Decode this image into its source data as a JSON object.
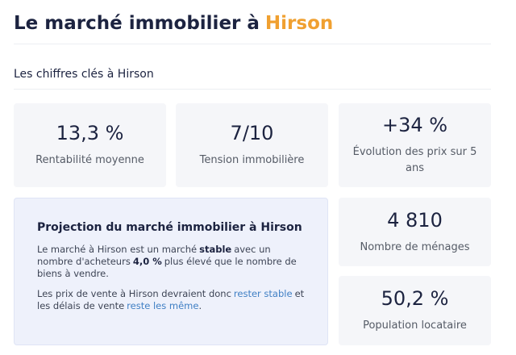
{
  "header": {
    "title": "Le marché immobilier à",
    "city": "Hirson"
  },
  "section": {
    "title": "Les chiffres clés à Hirson"
  },
  "stats": [
    {
      "value": "13,3 %",
      "label": "Rentabilité moyenne"
    },
    {
      "value": "7/10",
      "label": "Tension immobilière"
    },
    {
      "value": "+34 %",
      "label": "Évolution des prix sur 5 ans"
    },
    {
      "value": "4 810",
      "label": "Nombre de ménages"
    },
    {
      "value": "50,2 %",
      "label": "Population locataire"
    }
  ],
  "projection": {
    "title": "Projection du marché immobilier à Hirson",
    "paragraphs": [
      [
        "Le marché à Hirson est un marché",
        "stable",
        "avec un nombre d'acheteurs",
        "4,0 %",
        "plus élevé que le nombre de biens à vendre."
      ],
      [
        "Les prix de vente à Hirson devraient donc",
        "rester stable",
        "et les délais de vente",
        "reste les même",
        "."
      ]
    ]
  }
}
